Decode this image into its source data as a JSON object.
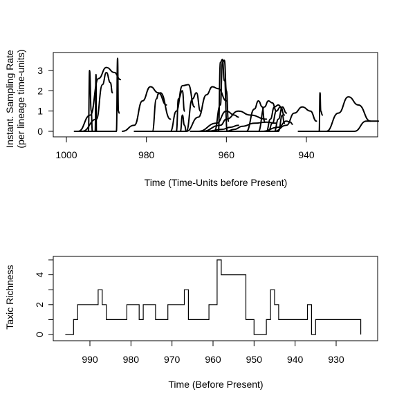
{
  "chart_data": [
    {
      "type": "line",
      "xlabel": "Time (Time-Units before Present)",
      "ylabel": "Instant. Sampling Rate",
      "ylabel2": "(per lineage time-units)",
      "xlim": [
        1005,
        916
      ],
      "ylim": [
        0,
        3.6
      ],
      "x_reversed": true,
      "x_ticks": [
        1000,
        980,
        960,
        940
      ],
      "y_ticks": [
        0,
        1,
        2,
        3
      ],
      "grid": false,
      "series": [
        {
          "x": [
            998,
            994.5,
            994.2,
            993.8,
            993.5
          ],
          "y": [
            0,
            0,
            3.0,
            1.0,
            0
          ]
        },
        {
          "x": [
            997,
            994,
            992,
            990,
            988,
            986.5
          ],
          "y": [
            0,
            0.8,
            2.6,
            3.15,
            2.9,
            2.55
          ]
        },
        {
          "x": [
            996,
            992.5,
            991,
            990,
            989,
            988.5
          ],
          "y": [
            0,
            0.6,
            2.3,
            2.9,
            2.4,
            1.9
          ]
        },
        {
          "x": [
            995,
            992.8,
            992.6,
            992.5
          ],
          "y": [
            0,
            0,
            2.8,
            0
          ]
        },
        {
          "x": [
            993,
            987.5,
            987.2,
            987.0,
            986.8
          ],
          "y": [
            0,
            0,
            3.6,
            1.0,
            0.9
          ]
        },
        {
          "x": [
            986,
            983,
            981,
            979,
            977,
            975
          ],
          "y": [
            0,
            0.3,
            1.5,
            2.2,
            1.9,
            1.3
          ]
        },
        {
          "x": [
            983,
            978.5,
            977.5,
            977,
            976.5,
            974
          ],
          "y": [
            0,
            0,
            1.6,
            1.85,
            1.9,
            0.6
          ]
        },
        {
          "x": [
            980,
            974,
            972.5,
            971,
            969.5,
            968
          ],
          "y": [
            0,
            0,
            1.0,
            2.25,
            2.3,
            1.2
          ]
        },
        {
          "x": [
            978,
            972.5,
            972,
            971,
            970.5
          ],
          "y": [
            0,
            0,
            1.6,
            2.0,
            1.0
          ]
        },
        {
          "x": [
            976,
            970,
            968.5,
            967.5,
            966.5
          ],
          "y": [
            0,
            0,
            1.6,
            1.9,
            1.0
          ]
        },
        {
          "x": [
            974,
            971.5,
            971,
            970.5,
            970
          ],
          "y": [
            0,
            0,
            0.8,
            0.3,
            0
          ]
        },
        {
          "x": [
            970,
            967,
            965,
            963.5,
            962,
            960
          ],
          "y": [
            0,
            0.7,
            1.8,
            2.2,
            2.1,
            1.5
          ]
        },
        {
          "x": [
            969,
            963,
            961.5,
            961,
            960.5,
            960,
            959.5
          ],
          "y": [
            0,
            0,
            1.3,
            3.4,
            3.5,
            2.0,
            0.5
          ]
        },
        {
          "x": [
            968,
            962,
            961.5,
            961,
            960.5,
            959.8
          ],
          "y": [
            0,
            0,
            3.4,
            3.55,
            2.5,
            0
          ]
        },
        {
          "x": [
            967,
            962.5,
            960,
            958,
            957
          ],
          "y": [
            0,
            0.4,
            1.0,
            0.8,
            0.7
          ]
        },
        {
          "x": [
            966,
            961.5,
            960,
            957,
            954,
            950
          ],
          "y": [
            0,
            0.3,
            0.6,
            1.0,
            0.8,
            0.6
          ]
        },
        {
          "x": [
            965,
            961,
            959,
            957
          ],
          "y": [
            0,
            0.1,
            0.2,
            0.3
          ]
        },
        {
          "x": [
            964,
            960,
            958,
            956,
            953,
            950,
            947.5
          ],
          "y": [
            0,
            0,
            0.1,
            0.25,
            0.4,
            0.45,
            0.4
          ]
        },
        {
          "x": [
            962,
            955,
            953,
            952,
            951,
            950.5
          ],
          "y": [
            0,
            0,
            1.1,
            1.5,
            1.2,
            0.5
          ]
        },
        {
          "x": [
            960,
            952,
            950.5,
            949.5,
            948.5,
            947.5
          ],
          "y": [
            0,
            0,
            1.2,
            1.5,
            1.4,
            1.0
          ]
        },
        {
          "x": [
            958,
            950,
            949,
            948,
            947,
            946
          ],
          "y": [
            0,
            0,
            0.6,
            1.2,
            1.3,
            1.1
          ]
        },
        {
          "x": [
            957,
            949.5,
            948.5,
            947.5,
            946.5,
            945.5
          ],
          "y": [
            0,
            0,
            0.4,
            1.0,
            1.2,
            0.8
          ]
        },
        {
          "x": [
            955,
            948,
            947,
            946,
            945
          ],
          "y": [
            0,
            0,
            0.6,
            1.2,
            0.9
          ]
        },
        {
          "x": [
            954,
            947,
            946,
            945.5
          ],
          "y": [
            0,
            0,
            0.8,
            0.4
          ]
        },
        {
          "x": [
            951,
            947,
            945,
            944,
            943.5
          ],
          "y": [
            0,
            0.2,
            0.5,
            0.45,
            0.35
          ]
        },
        {
          "x": [
            948,
            945,
            943,
            941,
            939,
            937.5
          ],
          "y": [
            0,
            0.3,
            0.9,
            1.2,
            1.0,
            0.5
          ]
        },
        {
          "x": [
            942,
            936.8,
            936.6,
            936.4,
            936
          ],
          "y": [
            0,
            0,
            1.9,
            1.0,
            0.8
          ]
        },
        {
          "x": [
            940,
            935,
            932,
            929.5,
            927,
            924
          ],
          "y": [
            0,
            0,
            0.9,
            1.7,
            1.3,
            0.5
          ]
        },
        {
          "x": [
            936,
            928,
            925,
            922
          ],
          "y": [
            0,
            0,
            0.5,
            0.5
          ]
        }
      ]
    },
    {
      "type": "line",
      "step": true,
      "xlabel": "Time (Before Present)",
      "ylabel": "Taxic Richness",
      "xlim": [
        999,
        921
      ],
      "ylim": [
        0,
        5
      ],
      "x_reversed": true,
      "x_ticks": [
        990,
        980,
        970,
        960,
        950,
        940,
        930
      ],
      "y_ticks": [
        0,
        1,
        2,
        3,
        4,
        5
      ],
      "y_tick_labels": [
        "0",
        "",
        "2",
        "",
        "4",
        ""
      ],
      "grid": false,
      "series": [
        {
          "x": [
            996,
            994,
            993,
            988,
            987,
            986,
            981,
            978,
            977,
            974,
            971,
            967,
            966,
            961,
            959,
            958,
            952,
            950,
            947,
            946,
            945,
            944,
            937,
            936,
            935,
            924
          ],
          "y": [
            0,
            1,
            2,
            3,
            2,
            1,
            2,
            1,
            2,
            1,
            2,
            3,
            1,
            2,
            5,
            4,
            1,
            0,
            1,
            3,
            2,
            1,
            2,
            0,
            1,
            0
          ]
        }
      ]
    }
  ]
}
